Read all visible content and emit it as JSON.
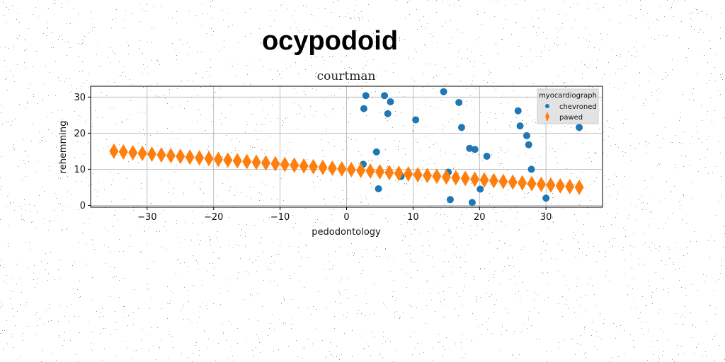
{
  "chart_data": {
    "type": "scatter",
    "suptitle": "ocypodoid",
    "title": "courtman",
    "xlabel": "pedodontology",
    "ylabel": "rehemming",
    "xlim": [
      -38.5,
      38.5
    ],
    "ylim": [
      -0.5,
      33
    ],
    "xticks": [
      -30,
      -20,
      -10,
      0,
      10,
      20,
      30
    ],
    "yticks": [
      0,
      10,
      20,
      30
    ],
    "grid": true,
    "legend": {
      "title": "myocardiograph",
      "placement": "top-right"
    },
    "colors": {
      "chevroned": "#1f77b4",
      "pawed": "#ff7f0e"
    },
    "series": [
      {
        "name": "chevroned",
        "marker": "circle",
        "points": [
          [
            2.6,
            26.8
          ],
          [
            2.9,
            30.4
          ],
          [
            2.5,
            11.4
          ],
          [
            4.5,
            14.8
          ],
          [
            4.8,
            4.6
          ],
          [
            5.7,
            30.4
          ],
          [
            6.2,
            25.4
          ],
          [
            6.6,
            28.7
          ],
          [
            8.2,
            8.0
          ],
          [
            10.4,
            23.7
          ],
          [
            14.6,
            31.5
          ],
          [
            15.3,
            9.2
          ],
          [
            15.6,
            1.6
          ],
          [
            16.9,
            28.5
          ],
          [
            17.3,
            21.6
          ],
          [
            18.5,
            15.8
          ],
          [
            18.9,
            0.8
          ],
          [
            19.3,
            15.5
          ],
          [
            20.1,
            4.5
          ],
          [
            21.1,
            13.6
          ],
          [
            25.8,
            26.2
          ],
          [
            26.1,
            22.0
          ],
          [
            27.1,
            19.3
          ],
          [
            27.4,
            16.8
          ],
          [
            27.8,
            10.0
          ],
          [
            30.0,
            2.0
          ],
          [
            35.0,
            21.6
          ]
        ]
      },
      {
        "name": "pawed",
        "marker": "thin_diamond",
        "x_start": -35,
        "x_end": 35,
        "count": 50,
        "y_start": 15.0,
        "y_end": 5.0
      }
    ]
  }
}
